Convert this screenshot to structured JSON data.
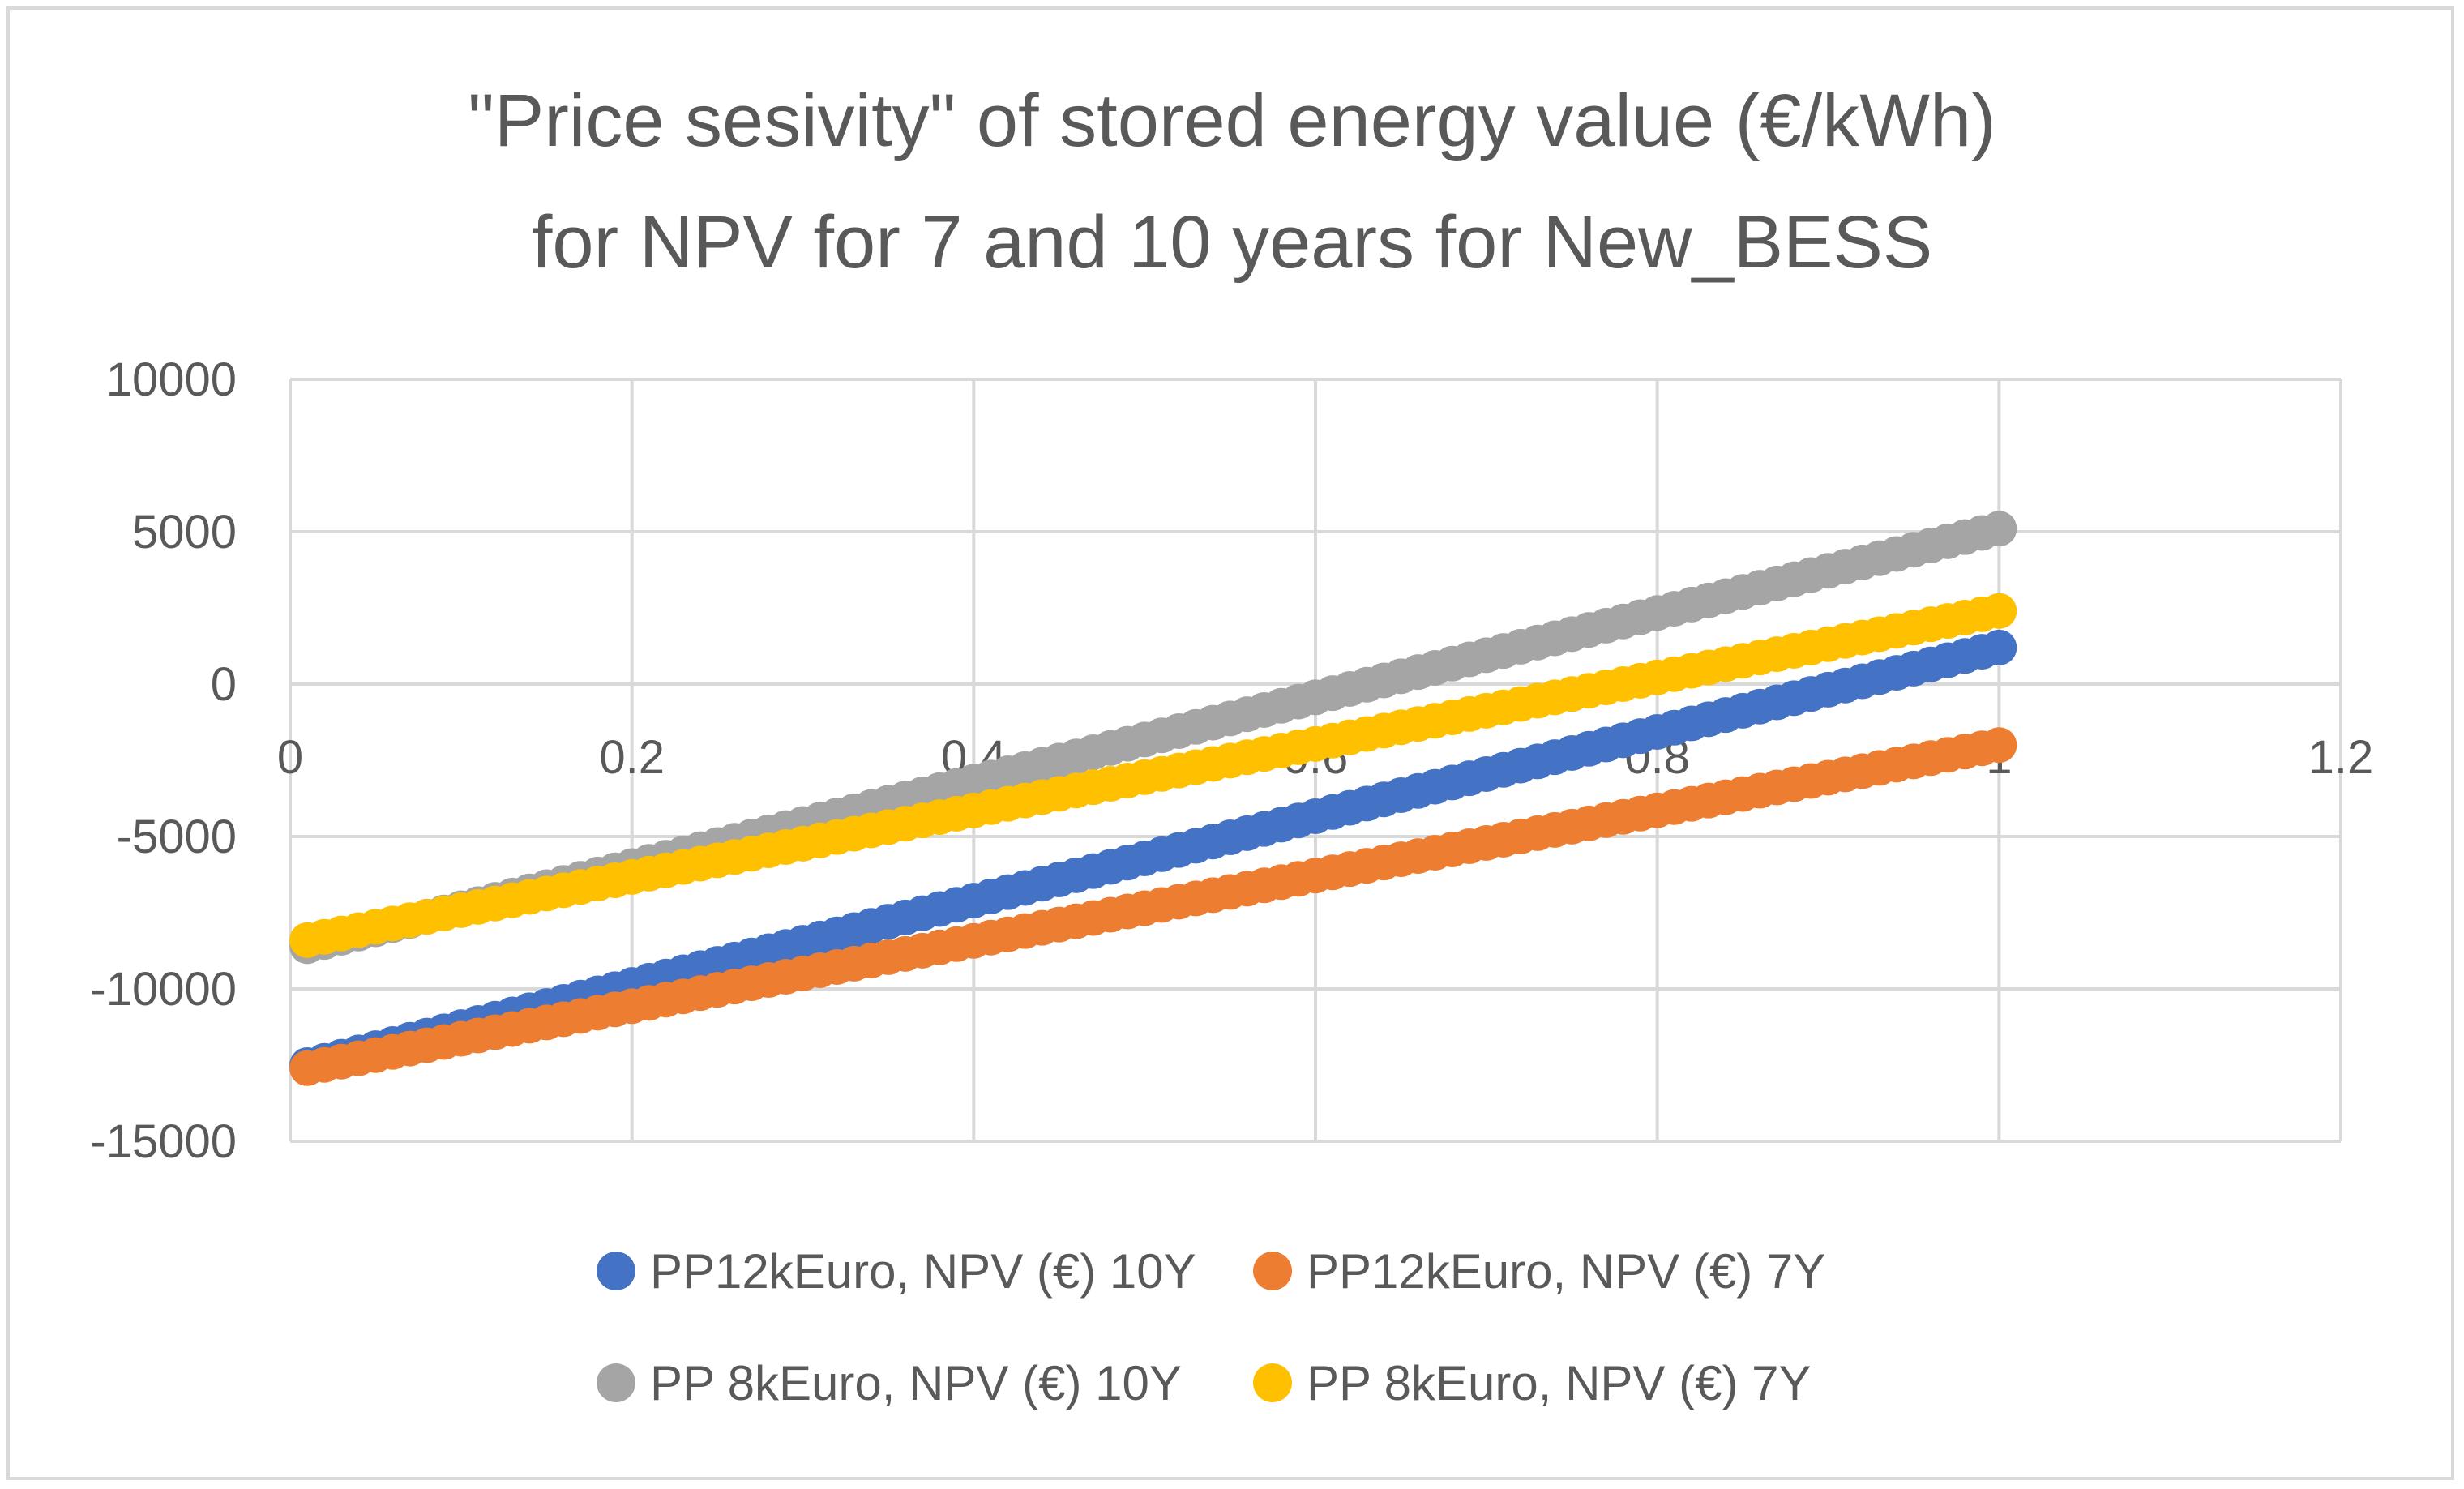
{
  "chart_data": {
    "type": "scatter",
    "title": [
      "\"Price sesivity\" of stored energy value (€/kWh)",
      "for NPV for 7 and 10 years for New_BESS"
    ],
    "xlabel": "",
    "ylabel": "",
    "xlim": [
      0,
      1.2
    ],
    "ylim": [
      -15000,
      10000
    ],
    "x_ticks": [
      0,
      0.2,
      0.4,
      0.6,
      0.8,
      1,
      1.2
    ],
    "x_tick_labels": [
      "0",
      "0.2",
      "0.4",
      "0.6",
      "0.8",
      "1",
      "1.2"
    ],
    "y_ticks": [
      10000,
      5000,
      0,
      -5000,
      -10000,
      -15000
    ],
    "y_tick_labels": [
      "10000",
      "5000",
      "0",
      "-5000",
      "-10000",
      "-15000"
    ],
    "grid": true,
    "legend_position": "bottom",
    "x_range": {
      "start": 0.01,
      "end": 1.0,
      "step": 0.01
    },
    "series": [
      {
        "name": "PP12kEuro, NPV (€) 10Y",
        "color": "#4472C4",
        "y_start": -12500,
        "y_end": 1200
      },
      {
        "name": "PP12kEuro, NPV (€) 7Y",
        "color": "#ED7D31",
        "y_start": -12600,
        "y_end": -2000
      },
      {
        "name": "PP 8kEuro, NPV (€) 10Y",
        "color": "#A5A5A5",
        "y_start": -8600,
        "y_end": 5100
      },
      {
        "name": "PP 8kEuro, NPV (€) 7Y",
        "color": "#FFC000",
        "y_start": -8400,
        "y_end": 2400
      }
    ]
  }
}
